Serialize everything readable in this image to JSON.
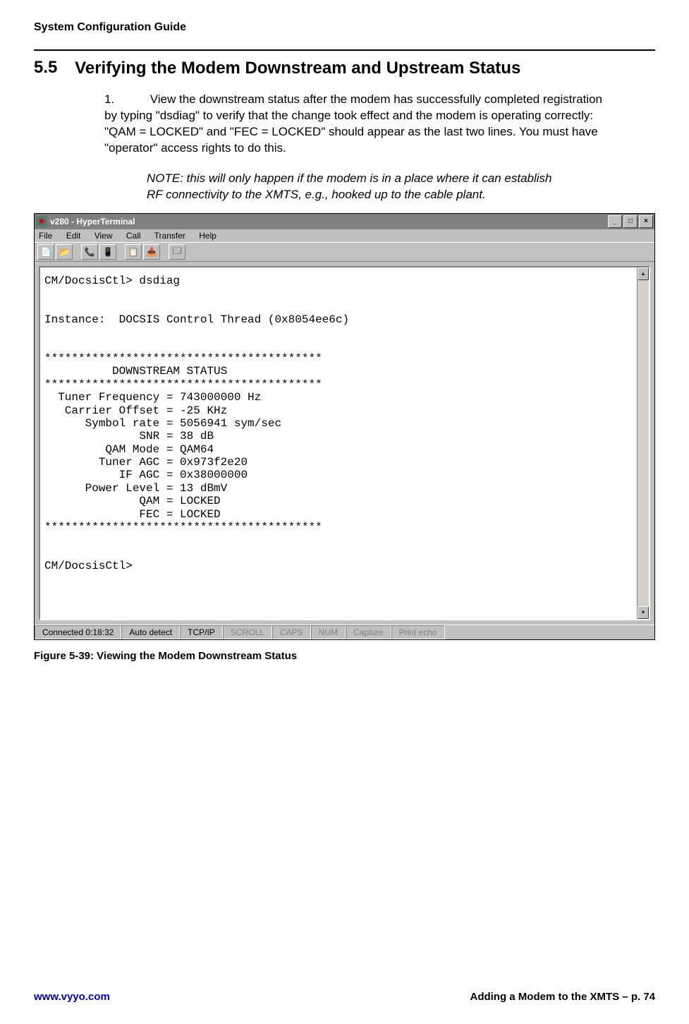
{
  "doc": {
    "running_head": "System Configuration Guide",
    "section_number": "5.5",
    "section_title": "Verifying the Modem Downstream and Upstream Status",
    "step_number": "1.",
    "step_text": "View the downstream status after the modem has successfully completed registration by typing \"dsdiag\" to verify that the change took effect and the modem is operating correctly:  \"QAM = LOCKED\" and \"FEC = LOCKED\" should appear as the last two lines.  You must have \"operator\" access rights to do this.",
    "note_text": "NOTE:  this will only happen if the modem is in a place where it can establish RF connectivity to the XMTS, e.g., hooked up to the cable plant.",
    "figure_caption": "Figure 5-39: Viewing the Modem Downstream Status",
    "footer_left": "www.vyyo.com",
    "footer_right": "Adding a Modem to the XMTS – p. 74"
  },
  "window": {
    "title": "v280 - HyperTerminal",
    "menubar": [
      "File",
      "Edit",
      "View",
      "Call",
      "Transfer",
      "Help"
    ],
    "toolbar_icons": [
      "📄",
      "📂",
      "📞",
      "📳",
      "📋",
      "📥",
      "🗔"
    ],
    "terminal_text": "CM/DocsisCtl> dsdiag\n\n\nInstance:  DOCSIS Control Thread (0x8054ee6c)\n\n\n*****************************************\n          DOWNSTREAM STATUS\n*****************************************\n  Tuner Frequency = 743000000 Hz\n   Carrier Offset = -25 KHz\n      Symbol rate = 5056941 sym/sec\n              SNR = 38 dB\n         QAM Mode = QAM64\n        Tuner AGC = 0x973f2e20\n           IF AGC = 0x38000000\n      Power Level = 13 dBmV\n              QAM = LOCKED\n              FEC = LOCKED\n*****************************************\n\n\nCM/DocsisCtl>",
    "statusbar": {
      "connected": "Connected 0:18:32",
      "detect": "Auto detect",
      "proto": "TCP/IP",
      "scroll": "SCROLL",
      "caps": "CAPS",
      "num": "NUM",
      "capture": "Capture",
      "echo": "Print echo"
    }
  }
}
